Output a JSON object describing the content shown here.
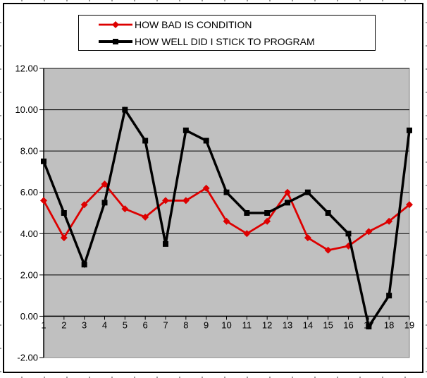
{
  "window": {
    "bg_color": "#ffffff",
    "frame_color": "#000000"
  },
  "chart_data": {
    "type": "line",
    "title": "",
    "xlabel": "",
    "ylabel": "",
    "categories": [
      "1",
      "2",
      "3",
      "4",
      "5",
      "6",
      "7",
      "8",
      "9",
      "10",
      "11",
      "12",
      "13",
      "14",
      "15",
      "16",
      "17",
      "18",
      "19"
    ],
    "series": [
      {
        "name": "HOW BAD IS CONDITION",
        "color": "#dd0000",
        "marker": "diamond",
        "values": [
          5.6,
          3.8,
          5.4,
          6.4,
          5.2,
          4.8,
          5.6,
          5.6,
          6.2,
          4.6,
          4.0,
          4.6,
          6.0,
          3.8,
          3.2,
          3.4,
          4.1,
          4.6,
          5.4
        ]
      },
      {
        "name": "HOW WELL DID I STICK TO PROGRAM",
        "color": "#000000",
        "marker": "square",
        "values": [
          7.5,
          5.0,
          2.5,
          5.5,
          10.0,
          8.5,
          3.5,
          9.0,
          8.5,
          6.0,
          5.0,
          5.0,
          5.5,
          6.0,
          5.0,
          4.0,
          -0.5,
          1.0,
          9.0
        ]
      }
    ],
    "ylim": [
      -2,
      12
    ],
    "yticks": [
      12,
      10,
      8,
      6,
      4,
      2,
      0,
      -2
    ],
    "ytick_labels": [
      "12.00",
      "10.00",
      "8.00",
      "6.00",
      "4.00",
      "2.00",
      "0.00",
      "-2.00"
    ],
    "grid": true,
    "legend_position": "top",
    "plot_bg": "#c0c0c0",
    "plot_border": "#808080",
    "axis_color": "#000000",
    "label_color": "#000000"
  }
}
